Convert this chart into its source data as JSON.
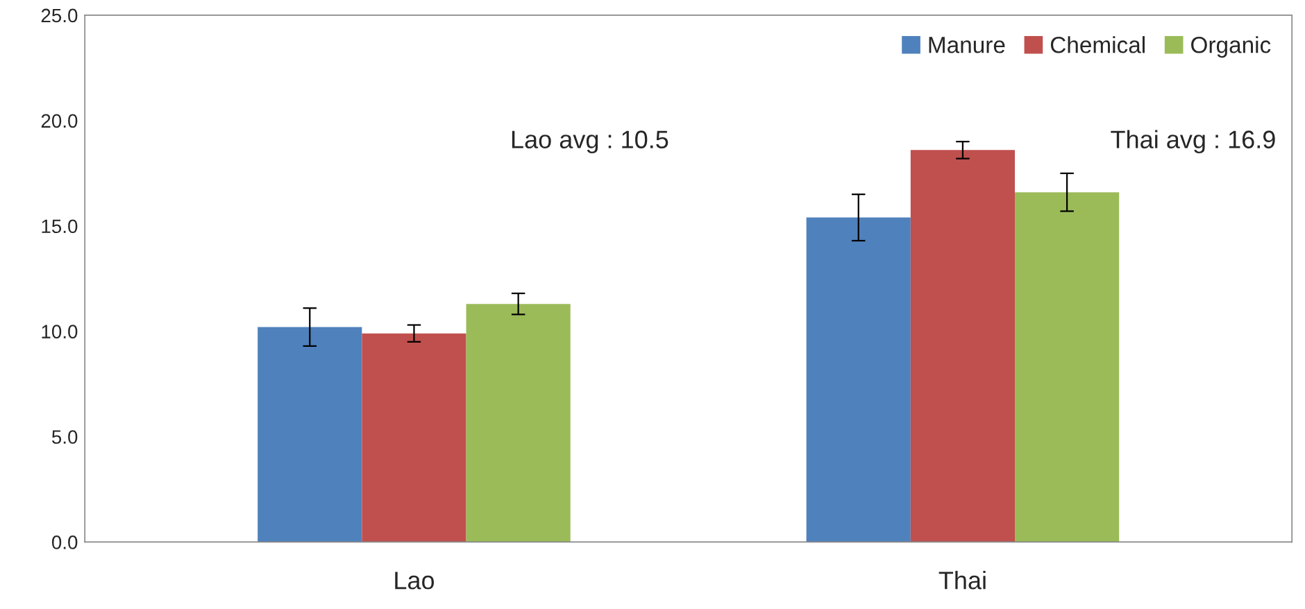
{
  "chart_data": {
    "type": "bar",
    "categories": [
      "Lao",
      "Thai"
    ],
    "series": [
      {
        "name": "Manure",
        "color": "#4f81bd",
        "values": [
          10.2,
          15.4
        ],
        "errors": [
          0.9,
          1.1
        ]
      },
      {
        "name": "Chemical",
        "color": "#c0504d",
        "values": [
          9.9,
          18.6
        ],
        "errors": [
          0.4,
          0.4
        ]
      },
      {
        "name": "Organic",
        "color": "#9bbb59",
        "values": [
          11.3,
          16.6
        ],
        "errors": [
          0.5,
          0.9
        ]
      }
    ],
    "ylim": [
      0,
      25
    ],
    "yticks": [
      {
        "value": 0,
        "label": "0.0"
      },
      {
        "value": 5,
        "label": "5.0"
      },
      {
        "value": 10,
        "label": "10.0"
      },
      {
        "value": 15,
        "label": "15.0"
      },
      {
        "value": 20,
        "label": "20.0"
      },
      {
        "value": 25,
        "label": "25.0"
      }
    ],
    "annotations": [
      "Lao avg : 10.5",
      "Thai avg : 16.9"
    ],
    "legend": "top right",
    "grid": false
  }
}
